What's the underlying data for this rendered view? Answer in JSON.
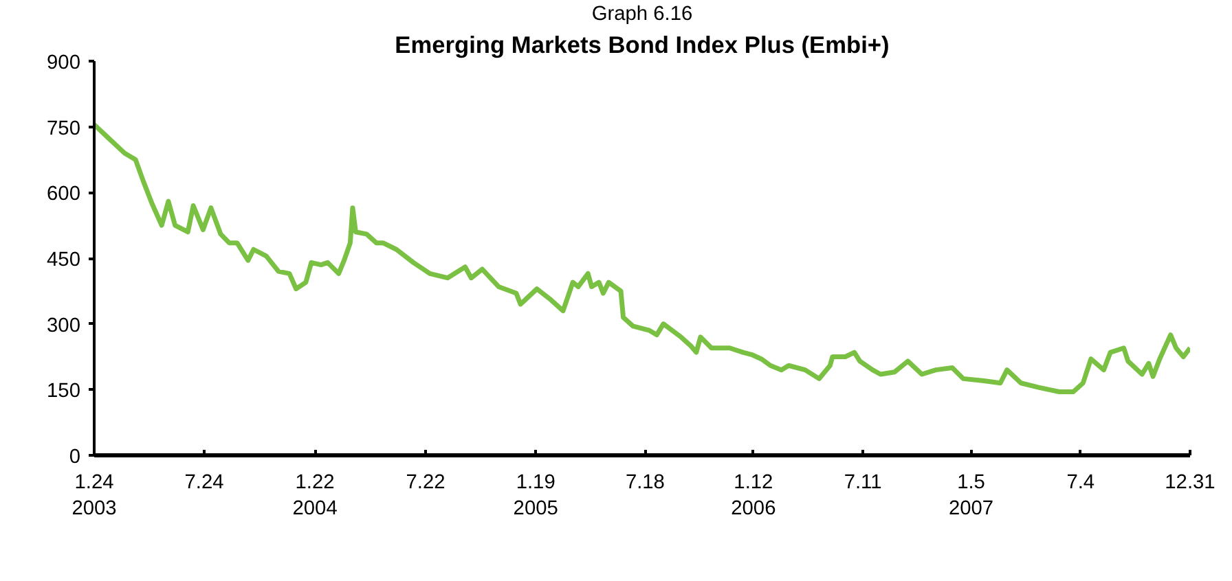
{
  "chart_data": {
    "type": "line",
    "subtitle": "Graph 6.16",
    "title": "Emerging Markets Bond Index Plus (Embi+)",
    "x": [
      "2003-01-24",
      "2003-02-16",
      "2003-03-15",
      "2003-04-02",
      "2003-04-15",
      "2003-04-29",
      "2003-05-15",
      "2003-05-26",
      "2003-06-06",
      "2003-06-27",
      "2003-07-06",
      "2003-07-22",
      "2003-08-04",
      "2003-08-20",
      "2003-09-03",
      "2003-09-16",
      "2003-10-04",
      "2003-10-13",
      "2003-11-03",
      "2003-11-23",
      "2003-12-11",
      "2003-12-22",
      "2004-01-07",
      "2004-01-16",
      "2004-02-01",
      "2004-02-12",
      "2004-03-01",
      "2004-03-10",
      "2004-03-20",
      "2004-03-24",
      "2004-03-29",
      "2004-04-16",
      "2004-05-02",
      "2004-05-13",
      "2004-06-04",
      "2004-07-02",
      "2004-07-29",
      "2004-08-27",
      "2004-09-25",
      "2004-10-05",
      "2004-10-23",
      "2004-11-19",
      "2004-12-18",
      "2004-12-25",
      "2005-01-21",
      "2005-02-13",
      "2005-03-05",
      "2005-03-21",
      "2005-03-30",
      "2005-04-15",
      "2005-04-21",
      "2005-05-03",
      "2005-05-10",
      "2005-05-19",
      "2005-06-08",
      "2005-06-12",
      "2005-06-28",
      "2005-07-25",
      "2005-08-06",
      "2005-08-17",
      "2005-09-15",
      "2005-10-01",
      "2005-10-10",
      "2005-10-17",
      "2005-11-04",
      "2005-12-04",
      "2005-12-26",
      "2006-01-09",
      "2006-01-25",
      "2006-02-09",
      "2006-02-27",
      "2006-03-11",
      "2006-04-07",
      "2006-04-30",
      "2006-05-18",
      "2006-05-22",
      "2006-06-12",
      "2006-06-27",
      "2006-07-06",
      "2006-07-27",
      "2006-08-09",
      "2006-09-01",
      "2006-09-23",
      "2006-10-16",
      "2006-11-08",
      "2006-12-05",
      "2006-12-23",
      "2007-01-26",
      "2007-02-22",
      "2007-03-05",
      "2007-03-28",
      "2007-04-26",
      "2007-05-30",
      "2007-06-22",
      "2007-07-08",
      "2007-07-21",
      "2007-08-11",
      "2007-08-22",
      "2007-09-13",
      "2007-09-20",
      "2007-10-13",
      "2007-10-24",
      "2007-10-31",
      "2007-11-11",
      "2007-11-29",
      "2007-12-08",
      "2007-12-20",
      "2007-12-31"
    ],
    "series": [
      {
        "color": "#7ac143",
        "values": [
          755,
          725,
          690,
          675,
          625,
          575,
          525,
          580,
          525,
          510,
          570,
          515,
          565,
          505,
          485,
          485,
          445,
          470,
          455,
          420,
          415,
          380,
          395,
          440,
          435,
          440,
          415,
          445,
          485,
          565,
          510,
          505,
          485,
          485,
          470,
          440,
          415,
          405,
          430,
          405,
          425,
          385,
          370,
          345,
          380,
          355,
          330,
          395,
          385,
          415,
          385,
          395,
          370,
          395,
          375,
          315,
          295,
          285,
          275,
          300,
          270,
          250,
          235,
          270,
          245,
          245,
          235,
          230,
          220,
          205,
          195,
          205,
          195,
          175,
          205,
          225,
          225,
          235,
          215,
          195,
          185,
          190,
          215,
          185,
          195,
          200,
          175,
          170,
          165,
          195,
          165,
          155,
          145,
          145,
          165,
          220,
          195,
          235,
          245,
          215,
          185,
          210,
          180,
          220,
          275,
          245,
          225,
          245
        ]
      }
    ],
    "xlim": [
      "2003-01-24",
      "2007-12-31"
    ],
    "xticks": [
      {
        "value": "2003-01-24",
        "label": "1.24\n2003"
      },
      {
        "value": "2003-07-24",
        "label": "7.24"
      },
      {
        "value": "2004-01-22",
        "label": "1.22\n2004"
      },
      {
        "value": "2004-07-22",
        "label": "7.22"
      },
      {
        "value": "2005-01-19",
        "label": "1.19\n2005"
      },
      {
        "value": "2005-07-18",
        "label": "7.18"
      },
      {
        "value": "2006-01-12",
        "label": "1.12\n2006"
      },
      {
        "value": "2006-07-11",
        "label": "7.11"
      },
      {
        "value": "2007-01-05",
        "label": "1.5\n2007"
      },
      {
        "value": "2007-07-04",
        "label": "7.4"
      },
      {
        "value": "2007-12-31",
        "label": "12.31"
      }
    ],
    "ylim": [
      0,
      900
    ],
    "yticks": [
      0,
      150,
      300,
      450,
      600,
      750,
      900
    ],
    "grid": false,
    "line_style": "solid",
    "marker": "none"
  }
}
